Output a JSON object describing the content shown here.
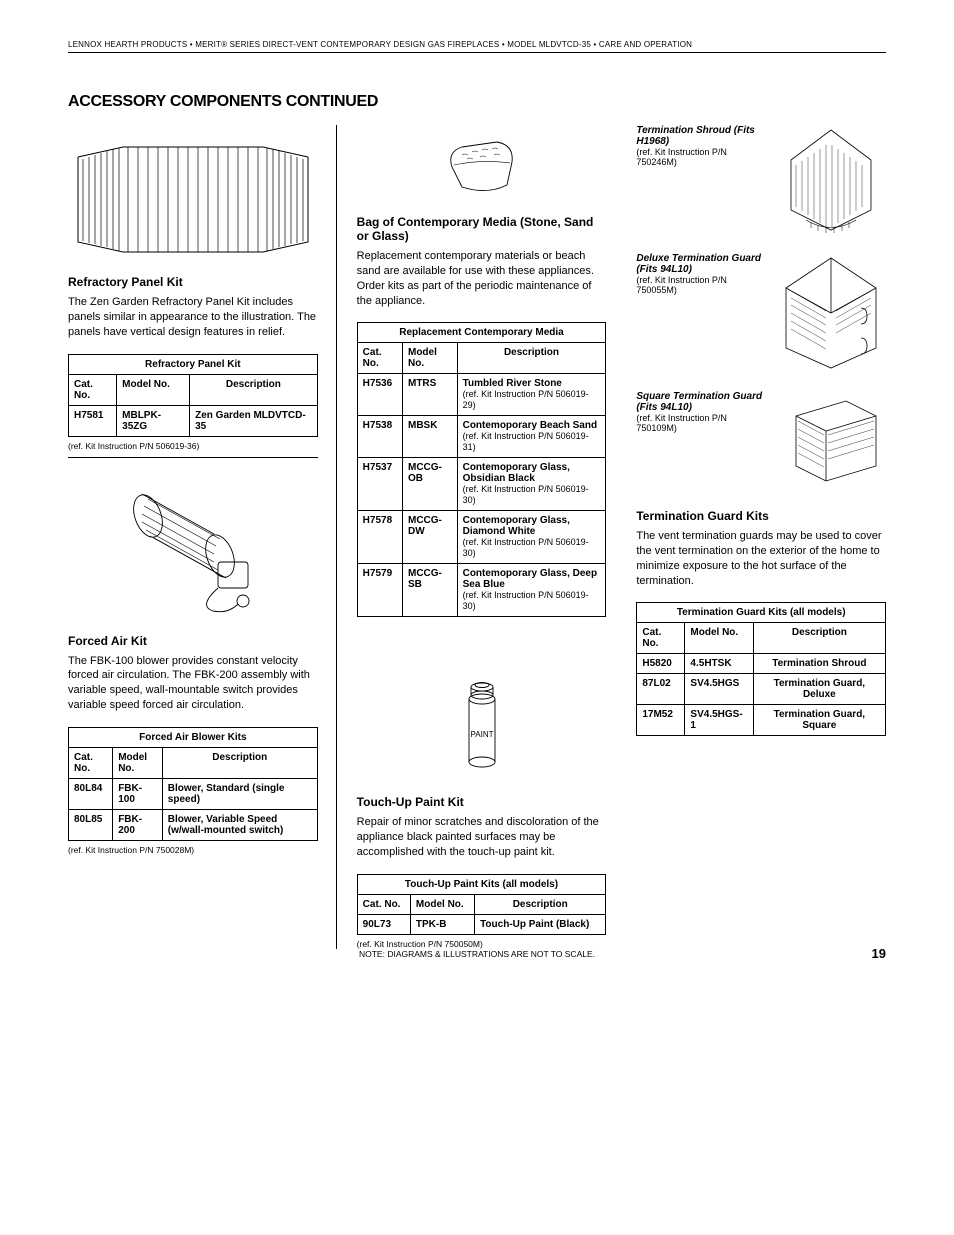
{
  "header": "LENNOX HEARTH PRODUCTS • MERIT® SERIES DIRECT-VENT CONTEMPORARY DESIGN GAS FIREPLACES • MODEL MLDVTCD-35 • CARE AND OPERATION",
  "title": "ACCESSORY COMPONENTS CONTINUED",
  "col1": {
    "refractory": {
      "head": "Refractory Panel Kit",
      "para": "The Zen Garden Refractory Panel Kit includes panels similar in appearance to the illustration. The panels have vertical design features in relief.",
      "table": {
        "title": "Refractory Panel Kit",
        "columns": [
          "Cat. No.",
          "Model No.",
          "Description"
        ],
        "rows": [
          [
            "H7581",
            "MBLPK-35ZG",
            "Zen Garden MLDVTCD-35"
          ]
        ]
      },
      "note": "(ref. Kit Instruction P/N 506019-36)"
    },
    "forced": {
      "head": "Forced Air Kit",
      "para": "The FBK-100 blower provides constant velocity forced air circulation. The FBK-200 assembly with variable speed, wall-mountable switch provides variable speed forced air circulation.",
      "table": {
        "title": "Forced Air Blower Kits",
        "columns": [
          "Cat. No.",
          "Model No.",
          "Description"
        ],
        "rows": [
          [
            "80L84",
            "FBK-100",
            "Blower, Standard (single speed)"
          ],
          [
            "80L85",
            "FBK-200",
            "Blower, Variable Speed (w/wall-mounted switch)"
          ]
        ]
      },
      "note": "(ref. Kit Instruction P/N 750028M)"
    }
  },
  "col2": {
    "media": {
      "head": "Bag of Contemporary Media (Stone, Sand or Glass)",
      "para": "Replacement contemporary materials or beach sand are available for use with these appliances. Order kits as part of the periodic maintenance of the appliance.",
      "table": {
        "title": "Replacement Contemporary Media",
        "columns": [
          "Cat. No.",
          "Model No.",
          "Description"
        ],
        "rows": [
          {
            "cat": "H7536",
            "model": "MTRS",
            "desc": "Tumbled River Stone",
            "sub": "(ref. Kit Instruction P/N 506019-29)"
          },
          {
            "cat": "H7538",
            "model": "MBSK",
            "desc": "Contemoporary Beach Sand",
            "sub": "(ref. Kit Instruction P/N 506019-31)"
          },
          {
            "cat": "H7537",
            "model": "MCCG-OB",
            "desc": "Contemoporary Glass, Obsidian Black",
            "sub": "(ref. Kit Instruction P/N 506019-30)"
          },
          {
            "cat": "H7578",
            "model": "MCCG-DW",
            "desc": "Contemoporary Glass, Diamond White",
            "sub": "(ref. Kit Instruction P/N 506019-30)"
          },
          {
            "cat": "H7579",
            "model": "MCCG-SB",
            "desc": "Contemoporary Glass, Deep Sea Blue",
            "sub": "(ref. Kit Instruction P/N 506019-30)"
          }
        ]
      }
    },
    "paint": {
      "head": "Touch-Up Paint Kit",
      "para": "Repair of minor scratches and discoloration of the appliance black painted surfaces may be accomplished with the touch-up paint kit.",
      "table": {
        "title": "Touch-Up Paint Kits (all models)",
        "columns": [
          "Cat. No.",
          "Model No.",
          "Description"
        ],
        "rows": [
          [
            "90L73",
            "TPK-B",
            "Touch-Up Paint (Black)"
          ]
        ]
      },
      "note": "(ref. Kit Instruction P/N 750050M)"
    }
  },
  "col3": {
    "labels": [
      {
        "name": "Termination Shroud (Fits H1968)",
        "ref": "(ref. Kit Instruction P/N 750246M)"
      },
      {
        "name": "Deluxe Termination Guard (Fits 94L10)",
        "ref": "(ref. Kit Instruction P/N 750055M)"
      },
      {
        "name": "Square Termination Guard (Fits 94L10)",
        "ref": "(ref. Kit Instruction P/N 750109M)"
      }
    ],
    "term": {
      "head": "Termination Guard Kits",
      "para": "The vent termination guards may be used to cover the vent termination on the exterior of the home to minimize exposure to the hot surface of the termination.",
      "table": {
        "title": "Termination Guard Kits (all models)",
        "columns": [
          "Cat. No.",
          "Model No.",
          "Description"
        ],
        "rows": [
          [
            "H5820",
            "4.5HTSK",
            "Termination Shroud"
          ],
          [
            "87L02",
            "SV4.5HGS",
            "Termination Guard, Deluxe"
          ],
          [
            "17M52",
            "SV4.5HGS-1",
            "Termination Guard, Square"
          ]
        ]
      }
    }
  },
  "footer": "NOTE: DIAGRAMS & ILLUSTRATIONS ARE NOT TO SCALE.",
  "pagenum": "19",
  "paint_label": "PAINT"
}
